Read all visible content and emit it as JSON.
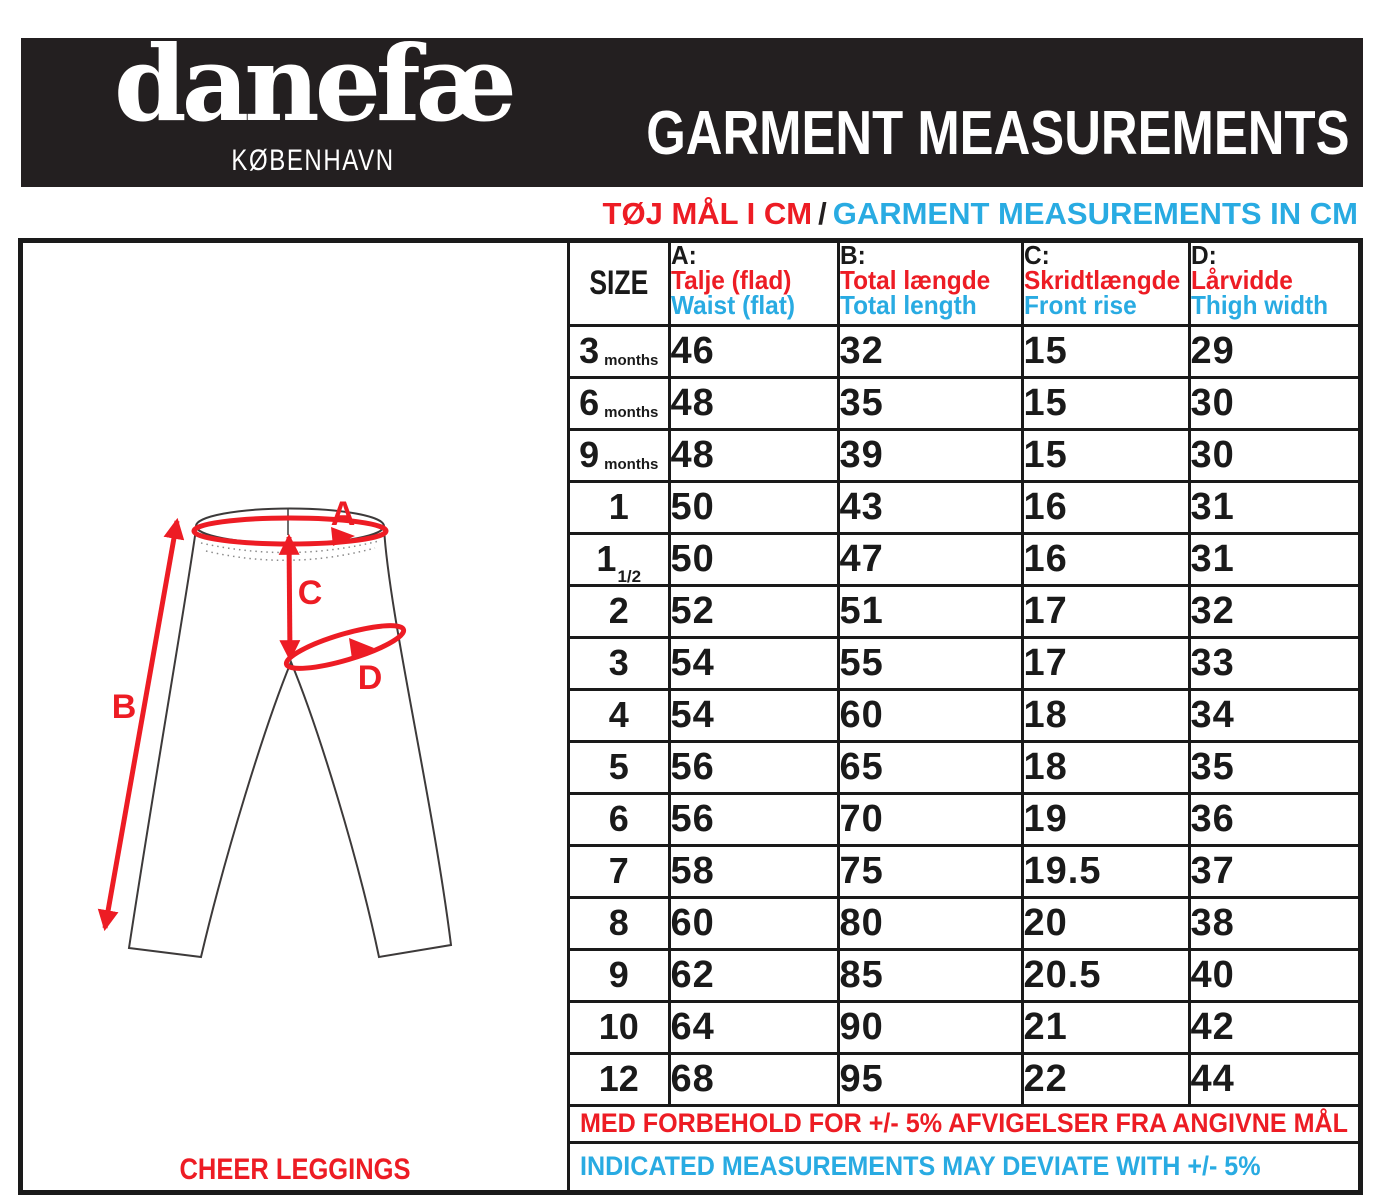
{
  "header": {
    "logo": "danefæ",
    "logo_sub": "KØBENHAVN",
    "title": "GARMENT MEASUREMENTS"
  },
  "subtitle": {
    "danish": "TØJ MÅL I CM",
    "separator": "/",
    "english": "GARMENT MEASUREMENTS IN CM"
  },
  "table": {
    "size_header": "SIZE",
    "columns": [
      {
        "letter": "A:",
        "danish": "Talje (flad)",
        "english": "Waist (flat)"
      },
      {
        "letter": "B:",
        "danish": "Total længde",
        "english": "Total length"
      },
      {
        "letter": "C:",
        "danish": "Skridtlængde",
        "english": "Front rise"
      },
      {
        "letter": "D:",
        "danish": "Lårvidde",
        "english": "Thigh width"
      }
    ],
    "rows": [
      {
        "size": "3",
        "size_suffix": "months",
        "values": [
          "46",
          "32",
          "15",
          "29"
        ]
      },
      {
        "size": "6",
        "size_suffix": "months",
        "values": [
          "48",
          "35",
          "15",
          "30"
        ]
      },
      {
        "size": "9",
        "size_suffix": "months",
        "values": [
          "48",
          "39",
          "15",
          "30"
        ]
      },
      {
        "size": "1",
        "size_suffix": "",
        "values": [
          "50",
          "43",
          "16",
          "31"
        ]
      },
      {
        "size": "1",
        "size_suffix": "1/2",
        "values": [
          "50",
          "47",
          "16",
          "31"
        ]
      },
      {
        "size": "2",
        "size_suffix": "",
        "values": [
          "52",
          "51",
          "17",
          "32"
        ]
      },
      {
        "size": "3",
        "size_suffix": "",
        "values": [
          "54",
          "55",
          "17",
          "33"
        ]
      },
      {
        "size": "4",
        "size_suffix": "",
        "values": [
          "54",
          "60",
          "18",
          "34"
        ]
      },
      {
        "size": "5",
        "size_suffix": "",
        "values": [
          "56",
          "65",
          "18",
          "35"
        ]
      },
      {
        "size": "6",
        "size_suffix": "",
        "values": [
          "56",
          "70",
          "19",
          "36"
        ]
      },
      {
        "size": "7",
        "size_suffix": "",
        "values": [
          "58",
          "75",
          "19.5",
          "37"
        ]
      },
      {
        "size": "8",
        "size_suffix": "",
        "values": [
          "60",
          "80",
          "20",
          "38"
        ]
      },
      {
        "size": "9",
        "size_suffix": "",
        "values": [
          "62",
          "85",
          "20.5",
          "40"
        ]
      },
      {
        "size": "10",
        "size_suffix": "",
        "values": [
          "64",
          "90",
          "21",
          "42"
        ]
      },
      {
        "size": "12",
        "size_suffix": "",
        "values": [
          "68",
          "95",
          "22",
          "44"
        ]
      }
    ],
    "note_danish": "MED FORBEHOLD FOR +/- 5% AFVIGELSER FRA ANGIVNE MÅL",
    "note_english": "INDICATED MEASUREMENTS MAY DEVIATE WITH +/- 5%"
  },
  "diagram": {
    "labels": {
      "a": "A",
      "b": "B",
      "c": "C",
      "d": "D"
    },
    "product_name": "CHEER LEGGINGS"
  },
  "colors": {
    "red": "#ed1c24",
    "blue": "#29abe2",
    "black": "#231f20"
  }
}
